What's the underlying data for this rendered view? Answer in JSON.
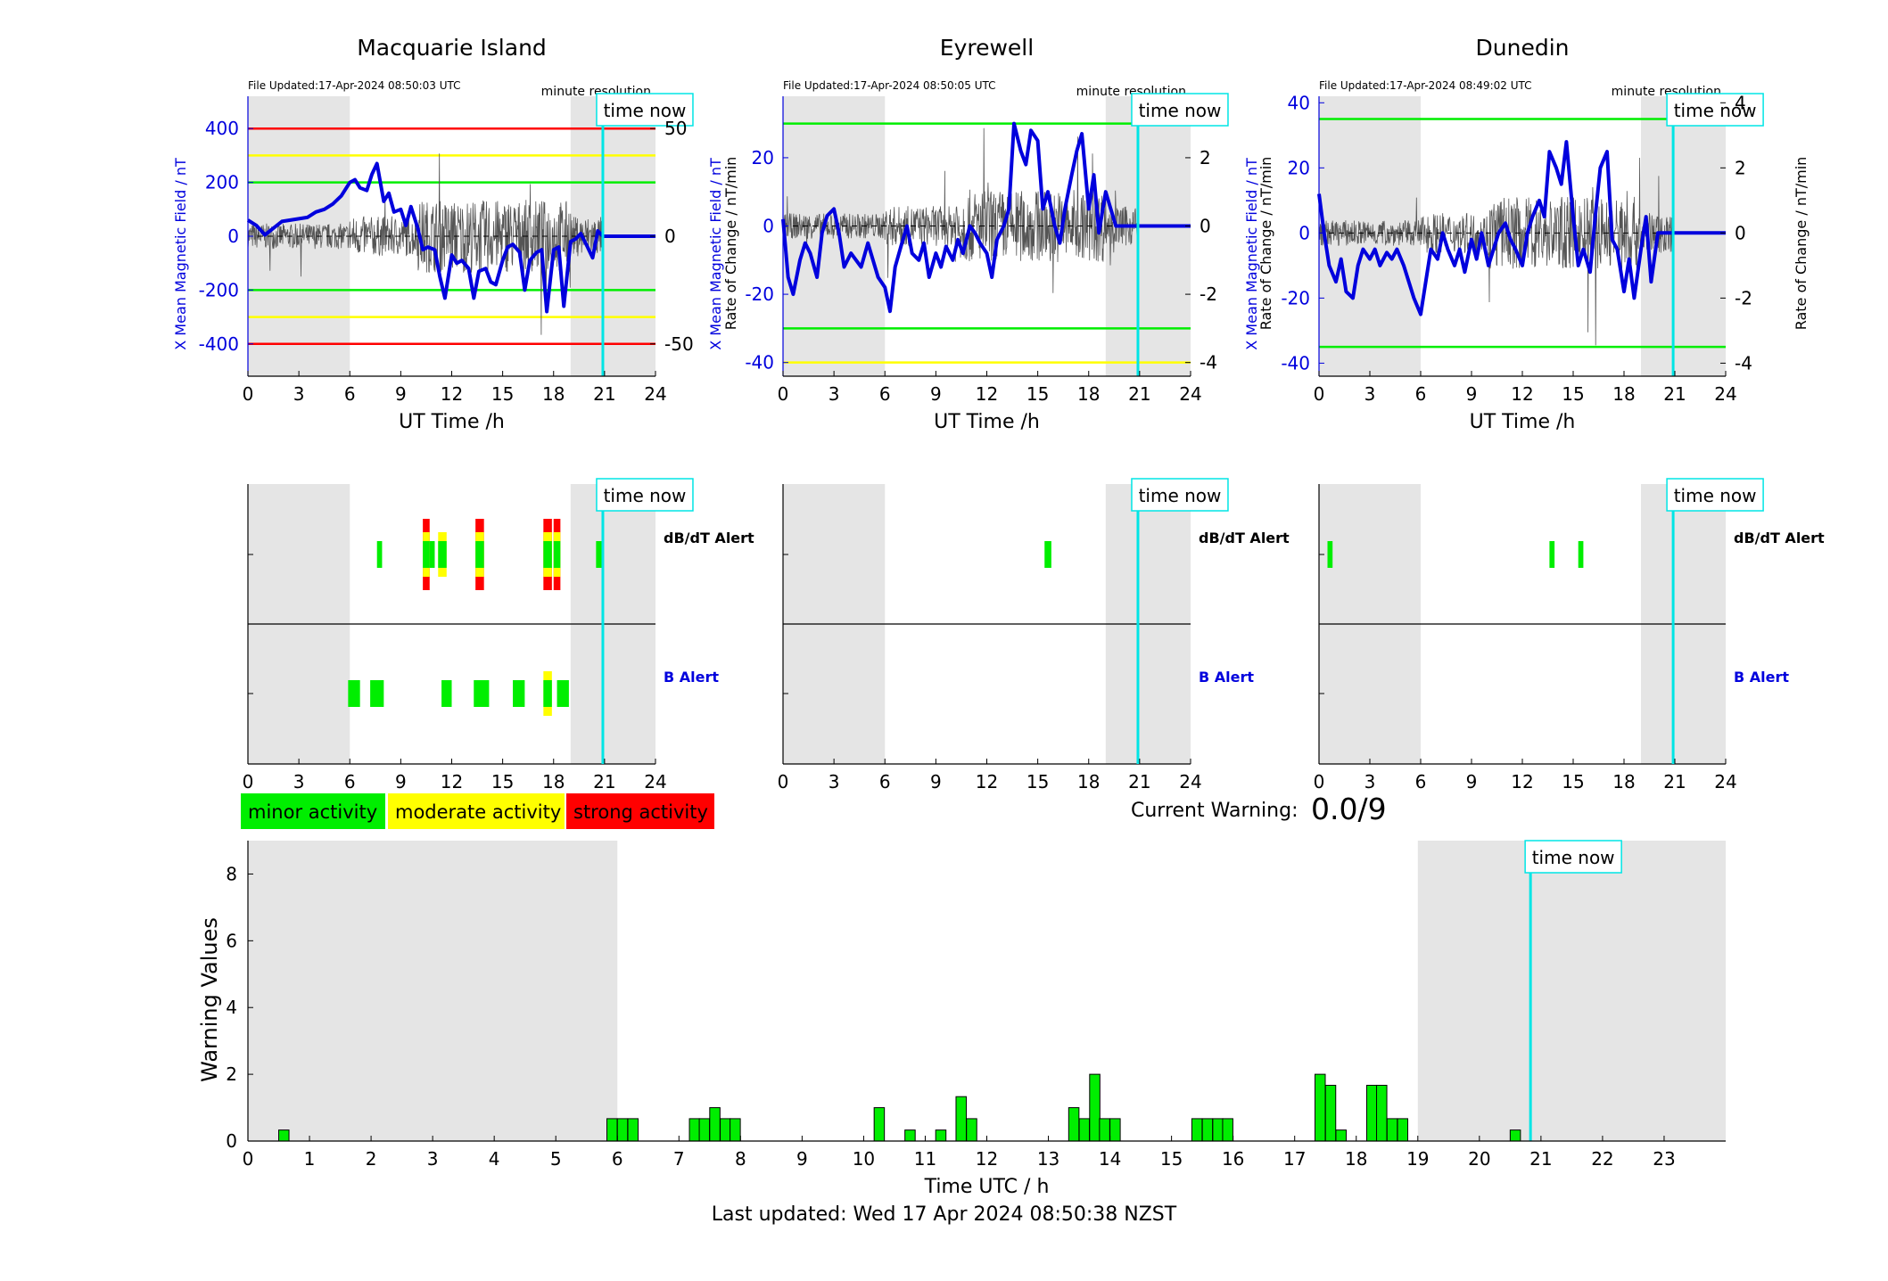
{
  "colors": {
    "minor": "#00ee00",
    "moderate": "#ffff00",
    "strong": "#ff0000",
    "field_line": "#0000dd",
    "now_line": "#00e5e5",
    "night_shade": "#e5e5e5"
  },
  "labels": {
    "time_now": "time now",
    "minute_resolution": "minute resolution",
    "ut_time": "UT Time /h",
    "left_axis": "X Mean Magnetic Field / nT",
    "right_axis": "Rate of Change / nT/min",
    "dbdt_alert": "dB/dT Alert",
    "b_alert": "B Alert",
    "current_warning_label": "Current Warning:",
    "current_warning_value": "0.0/9",
    "warning_ylabel": "Warning Values",
    "warning_xlabel": "Time UTC / h",
    "last_updated": "Last updated: Wed 17 Apr 2024 08:50:38 NZST"
  },
  "legend": [
    {
      "label": "minor activity",
      "color": "#00ee00"
    },
    {
      "label": "moderate activity",
      "color": "#ffff00"
    },
    {
      "label": "strong activity",
      "color": "#ff0000"
    }
  ],
  "chart_data": [
    {
      "type": "line",
      "title": "Macquarie Island",
      "file_updated": "File Updated:17-Apr-2024 08:50:03 UTC",
      "xlabel": "UT Time /h",
      "ylabel": "X Mean Magnetic Field / nT",
      "y2label": "Rate of Change / nT/min",
      "xlim": [
        0,
        24
      ],
      "xticks": [
        0,
        3,
        6,
        9,
        12,
        15,
        18,
        21,
        24
      ],
      "ylim": [
        -520,
        520
      ],
      "yticks": [
        -400,
        -200,
        0,
        200,
        400
      ],
      "y2lim": [
        -65,
        65
      ],
      "y2ticks": [
        -50,
        0,
        50
      ],
      "night_shading": [
        [
          0,
          6
        ],
        [
          19,
          24
        ]
      ],
      "time_now": 20.9,
      "threshold_lines": [
        {
          "value": 400,
          "color": "#ff0000"
        },
        {
          "value": 300,
          "color": "#ffff00"
        },
        {
          "value": 200,
          "color": "#00ee00"
        },
        {
          "value": -200,
          "color": "#00ee00"
        },
        {
          "value": -300,
          "color": "#ffff00"
        },
        {
          "value": -400,
          "color": "#ff0000"
        }
      ],
      "series": [
        {
          "values_x": [
            0,
            0.5,
            1,
            1.5,
            2,
            2.5,
            3,
            3.5,
            4,
            4.5,
            5,
            5.5,
            6,
            6.3,
            6.6,
            7,
            7.3,
            7.6,
            7.8,
            8,
            8.3,
            8.6,
            9,
            9.3,
            9.6,
            10,
            10.3,
            10.6,
            11,
            11.3,
            11.6,
            12,
            12.3,
            12.6,
            13,
            13.3,
            13.6,
            14,
            14.3,
            14.6,
            15,
            15.3,
            15.6,
            16,
            16.3,
            16.6,
            17,
            17.3,
            17.6,
            18,
            18.3,
            18.6,
            19,
            19.3,
            19.6,
            20,
            20.3,
            20.6,
            20.9,
            21,
            22,
            23,
            24
          ],
          "values_y": [
            60,
            40,
            5,
            30,
            55,
            60,
            65,
            70,
            90,
            100,
            120,
            150,
            200,
            210,
            180,
            170,
            230,
            270,
            200,
            130,
            160,
            90,
            100,
            40,
            110,
            30,
            -50,
            -40,
            -50,
            -150,
            -230,
            -70,
            -100,
            -90,
            -120,
            -230,
            -130,
            -120,
            -170,
            -180,
            -90,
            -40,
            -30,
            -60,
            -200,
            -90,
            -60,
            -50,
            -280,
            -50,
            -40,
            -260,
            -20,
            -10,
            10,
            -40,
            -80,
            20,
            0,
            0,
            0,
            0,
            0
          ]
        }
      ],
      "alerts": {
        "dbdt": [
          {
            "start": 7.6,
            "end": 7.9,
            "levels": [
              "minor"
            ]
          },
          {
            "start": 10.3,
            "end": 10.7,
            "levels": [
              "minor",
              "moderate",
              "strong"
            ]
          },
          {
            "start": 10.7,
            "end": 11.0,
            "levels": [
              "minor"
            ]
          },
          {
            "start": 11.2,
            "end": 11.7,
            "levels": [
              "minor",
              "moderate"
            ]
          },
          {
            "start": 13.4,
            "end": 13.9,
            "levels": [
              "minor",
              "moderate",
              "strong"
            ]
          },
          {
            "start": 17.4,
            "end": 17.9,
            "levels": [
              "minor",
              "moderate",
              "strong"
            ]
          },
          {
            "start": 18.0,
            "end": 18.4,
            "levels": [
              "minor",
              "moderate",
              "strong"
            ]
          },
          {
            "start": 20.5,
            "end": 20.9,
            "levels": [
              "minor"
            ]
          }
        ],
        "b": [
          {
            "start": 5.9,
            "end": 6.6,
            "levels": [
              "minor"
            ]
          },
          {
            "start": 7.2,
            "end": 8.0,
            "levels": [
              "minor"
            ]
          },
          {
            "start": 11.4,
            "end": 12.0,
            "levels": [
              "minor"
            ]
          },
          {
            "start": 13.3,
            "end": 14.2,
            "levels": [
              "minor"
            ]
          },
          {
            "start": 15.6,
            "end": 16.3,
            "levels": [
              "minor"
            ]
          },
          {
            "start": 17.4,
            "end": 17.9,
            "levels": [
              "minor",
              "moderate"
            ]
          },
          {
            "start": 18.2,
            "end": 18.9,
            "levels": [
              "minor"
            ]
          }
        ]
      }
    },
    {
      "type": "line",
      "title": "Eyrewell",
      "file_updated": "File Updated:17-Apr-2024 08:50:05 UTC",
      "xlabel": "UT Time /h",
      "ylabel": "X Mean Magnetic Field / nT",
      "y2label": "Rate of Change / nT/min",
      "xlim": [
        0,
        24
      ],
      "xticks": [
        0,
        3,
        6,
        9,
        12,
        15,
        18,
        21,
        24
      ],
      "ylim": [
        -44,
        38
      ],
      "yticks": [
        -40,
        -20,
        0,
        20
      ],
      "y2lim": [
        -4.4,
        3.8
      ],
      "y2ticks": [
        -4,
        -2,
        0,
        2
      ],
      "night_shading": [
        [
          0,
          6
        ],
        [
          19,
          24
        ]
      ],
      "time_now": 20.9,
      "threshold_lines": [
        {
          "value": 30,
          "color": "#00ee00"
        },
        {
          "value": -30,
          "color": "#00ee00"
        },
        {
          "value": -40,
          "color": "#ffff00"
        }
      ],
      "series": [
        {
          "values_x": [
            0,
            0.3,
            0.6,
            1,
            1.3,
            1.6,
            2,
            2.3,
            2.6,
            3,
            3.3,
            3.6,
            4,
            4.3,
            4.6,
            5,
            5.3,
            5.6,
            6,
            6.3,
            6.6,
            7,
            7.3,
            7.6,
            8,
            8.3,
            8.6,
            9,
            9.3,
            9.6,
            10,
            10.3,
            10.6,
            11,
            11.3,
            11.6,
            12,
            12.3,
            12.6,
            13,
            13.3,
            13.6,
            14,
            14.3,
            14.6,
            15,
            15.3,
            15.6,
            16,
            16.3,
            16.6,
            17,
            17.3,
            17.6,
            18,
            18.3,
            18.6,
            19,
            19.3,
            19.6,
            20,
            21,
            22,
            23,
            24
          ],
          "values_y": [
            2,
            -15,
            -20,
            -10,
            -5,
            -8,
            -15,
            -2,
            3,
            5,
            -2,
            -12,
            -8,
            -10,
            -12,
            -5,
            -10,
            -15,
            -18,
            -25,
            -12,
            -5,
            0,
            -8,
            -10,
            -5,
            -15,
            -8,
            -12,
            -6,
            -10,
            -4,
            -8,
            0,
            -2,
            -5,
            -8,
            -15,
            -4,
            0,
            5,
            30,
            22,
            18,
            28,
            25,
            5,
            10,
            0,
            -5,
            5,
            15,
            22,
            27,
            5,
            15,
            -2,
            10,
            5,
            0,
            0,
            0,
            0,
            0,
            0
          ]
        }
      ],
      "alerts": {
        "dbdt": [
          {
            "start": 15.4,
            "end": 15.8,
            "levels": [
              "minor"
            ]
          }
        ],
        "b": []
      }
    },
    {
      "type": "line",
      "title": "Dunedin",
      "file_updated": "File Updated:17-Apr-2024 08:49:02 UTC",
      "xlabel": "UT Time /h",
      "ylabel": "X Mean Magnetic Field / nT",
      "y2label": "Rate of Change / nT/min",
      "xlim": [
        0,
        24
      ],
      "xticks": [
        0,
        3,
        6,
        9,
        12,
        15,
        18,
        21,
        24
      ],
      "ylim": [
        -44,
        42
      ],
      "yticks": [
        -40,
        -20,
        0,
        20,
        40
      ],
      "y2lim": [
        -4.4,
        4.2
      ],
      "y2ticks": [
        -4,
        -2,
        0,
        2,
        4
      ],
      "night_shading": [
        [
          0,
          6
        ],
        [
          19,
          24
        ]
      ],
      "time_now": 20.9,
      "threshold_lines": [
        {
          "value": 35,
          "color": "#00ee00"
        },
        {
          "value": -35,
          "color": "#00ee00"
        }
      ],
      "series": [
        {
          "values_x": [
            0,
            0.3,
            0.6,
            1,
            1.3,
            1.6,
            2,
            2.3,
            2.6,
            3,
            3.3,
            3.6,
            4,
            4.3,
            4.6,
            5,
            5.3,
            5.6,
            6,
            6.3,
            6.6,
            7,
            7.3,
            7.6,
            8,
            8.3,
            8.6,
            9,
            9.3,
            9.6,
            10,
            10.3,
            10.6,
            11,
            11.3,
            11.6,
            12,
            12.3,
            12.6,
            13,
            13.3,
            13.6,
            14,
            14.3,
            14.6,
            15,
            15.3,
            15.6,
            16,
            16.3,
            16.6,
            17,
            17.3,
            17.6,
            18,
            18.3,
            18.6,
            19,
            19.3,
            19.6,
            20,
            21,
            22,
            23,
            24
          ],
          "values_y": [
            12,
            0,
            -10,
            -15,
            -8,
            -18,
            -20,
            -10,
            -5,
            -8,
            -5,
            -10,
            -6,
            -8,
            -5,
            -10,
            -15,
            -20,
            -25,
            -15,
            -5,
            -8,
            0,
            -5,
            -10,
            -5,
            -12,
            -2,
            -8,
            0,
            -10,
            -5,
            0,
            3,
            -2,
            -5,
            -10,
            0,
            5,
            10,
            5,
            25,
            20,
            15,
            28,
            5,
            -10,
            -5,
            -12,
            5,
            20,
            25,
            -2,
            -5,
            -18,
            -8,
            -20,
            -5,
            5,
            -15,
            0,
            0,
            0,
            0,
            0
          ]
        }
      ],
      "alerts": {
        "dbdt": [
          {
            "start": 0.5,
            "end": 0.8,
            "levels": [
              "minor"
            ]
          },
          {
            "start": 13.6,
            "end": 13.9,
            "levels": [
              "minor"
            ]
          },
          {
            "start": 15.3,
            "end": 15.6,
            "levels": [
              "minor"
            ]
          }
        ],
        "b": []
      }
    },
    {
      "type": "bar",
      "title": "",
      "xlabel": "Time UTC / h",
      "ylabel": "Warning Values",
      "xlim": [
        0,
        24
      ],
      "xticks": [
        0,
        1,
        2,
        3,
        4,
        5,
        6,
        7,
        8,
        9,
        10,
        11,
        12,
        13,
        14,
        15,
        16,
        17,
        18,
        19,
        20,
        21,
        22,
        23
      ],
      "ylim": [
        0,
        9
      ],
      "yticks": [
        0,
        2,
        4,
        6,
        8
      ],
      "night_shading": [
        [
          0,
          6
        ],
        [
          19,
          24
        ]
      ],
      "time_now": 20.83,
      "bar_width_h": 0.1667,
      "x": [
        0.5,
        5.83,
        6.0,
        6.17,
        7.17,
        7.33,
        7.5,
        7.67,
        7.83,
        10.17,
        10.67,
        11.17,
        11.5,
        11.67,
        13.33,
        13.5,
        13.67,
        13.83,
        14.0,
        15.33,
        15.5,
        15.67,
        15.83,
        17.33,
        17.5,
        17.67,
        18.17,
        18.33,
        18.5,
        18.67,
        20.5
      ],
      "values": [
        0.33,
        0.67,
        0.67,
        0.67,
        0.67,
        0.67,
        1.0,
        0.67,
        0.67,
        1.0,
        0.33,
        0.33,
        1.33,
        0.67,
        1.0,
        0.67,
        2.0,
        0.67,
        0.67,
        0.67,
        0.67,
        0.67,
        0.67,
        2.0,
        1.67,
        0.33,
        1.67,
        1.67,
        0.67,
        0.67,
        0.33
      ]
    }
  ]
}
